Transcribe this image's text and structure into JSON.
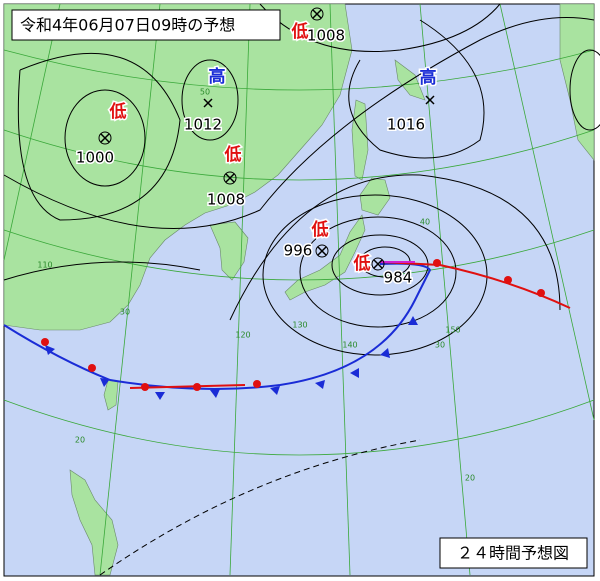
{
  "header": {
    "title": "令和4年06月07日09時の予想"
  },
  "footer": {
    "label": "２４時間予想図"
  },
  "pressure_systems": [
    {
      "kind": "低",
      "pressure": 1008
    },
    {
      "kind": "高",
      "pressure": 1012
    },
    {
      "kind": "低",
      "pressure": 1000
    },
    {
      "kind": "低",
      "pressure": 1008
    },
    {
      "kind": "高",
      "pressure": 1016
    },
    {
      "kind": "低",
      "pressure": 996
    },
    {
      "kind": "低",
      "pressure": 984
    }
  ],
  "grid_labels": [
    50,
    40,
    30,
    20,
    110,
    120,
    130,
    140,
    150,
    30,
    20
  ]
}
